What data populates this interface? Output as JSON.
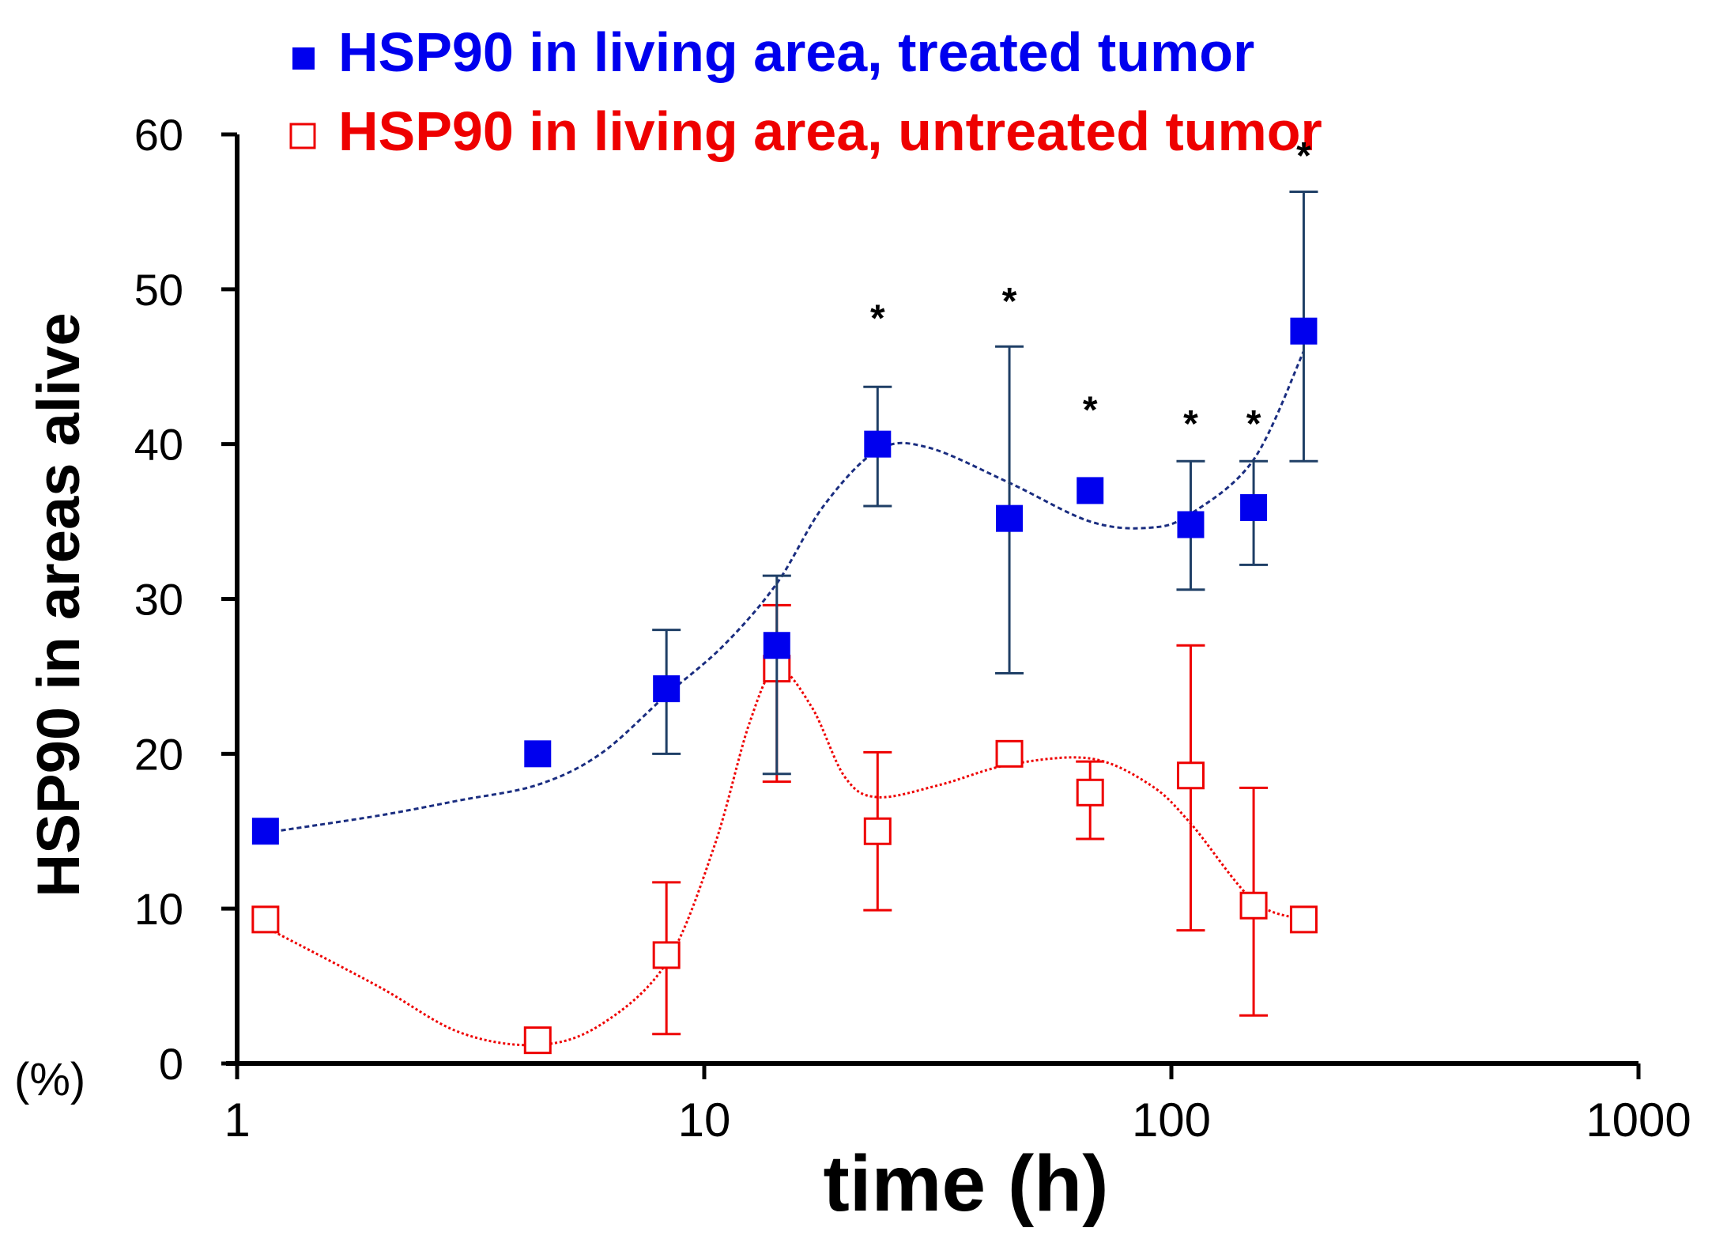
{
  "chart_data": {
    "type": "scatter",
    "xscale": "log",
    "xlim": [
      1,
      1000
    ],
    "ylim": [
      0,
      60
    ],
    "xticks": [
      1,
      10,
      100,
      1000
    ],
    "xtick_labels": [
      "1",
      "10",
      "100",
      "1000"
    ],
    "yticks": [
      0,
      10,
      20,
      30,
      40,
      50,
      60
    ],
    "ytick_labels": [
      "0",
      "10",
      "20",
      "30",
      "40",
      "50",
      "60"
    ],
    "xlabel": "time (h)",
    "ylabel": "HSP90 in areas alive",
    "yunit": "(%)",
    "legend_placement": "top",
    "series": [
      {
        "name": "HSP90 in living area, treated tumor",
        "color": "#0000ee",
        "trend_color": "#1a2d80",
        "errorbar_color": "#1f3f66",
        "marker": "filled-square",
        "points": [
          {
            "x": 1.15,
            "y": 15.0
          },
          {
            "x": 4.4,
            "y": 20.0
          },
          {
            "x": 8.3,
            "y": 24.2,
            "err_low": 20.0,
            "err_high": 28.0
          },
          {
            "x": 14.3,
            "y": 27.0,
            "err_low": 18.7,
            "err_high": 31.5
          },
          {
            "x": 23.5,
            "y": 40.0,
            "err_low": 36.0,
            "err_high": 43.7
          },
          {
            "x": 45.0,
            "y": 35.2,
            "err_low": 25.2,
            "err_high": 46.3
          },
          {
            "x": 67.0,
            "y": 37.0
          },
          {
            "x": 110.0,
            "y": 34.8,
            "err_low": 30.6,
            "err_high": 38.9
          },
          {
            "x": 150.0,
            "y": 35.9,
            "err_low": 32.2,
            "err_high": 38.9
          },
          {
            "x": 192.0,
            "y": 47.3,
            "err_low": 38.9,
            "err_high": 56.3
          }
        ],
        "trend": [
          [
            1.15,
            14.9
          ],
          [
            2,
            16.0
          ],
          [
            3,
            17.0
          ],
          [
            4.4,
            18.0
          ],
          [
            6,
            20.0
          ],
          [
            8.3,
            23.8
          ],
          [
            11,
            27.0
          ],
          [
            14.3,
            31.0
          ],
          [
            18,
            36.0
          ],
          [
            23.5,
            39.6
          ],
          [
            30,
            39.8
          ],
          [
            45,
            37.5
          ],
          [
            67,
            35.0
          ],
          [
            90,
            34.6
          ],
          [
            110,
            35.5
          ],
          [
            150,
            39.0
          ],
          [
            192,
            46.0
          ]
        ]
      },
      {
        "name": "HSP90 in living area, untreated tumor",
        "color": "#ee0000",
        "trend_color": "#ee0000",
        "errorbar_color": "#ee0000",
        "marker": "open-square",
        "points": [
          {
            "x": 1.15,
            "y": 9.3
          },
          {
            "x": 4.4,
            "y": 1.5
          },
          {
            "x": 8.3,
            "y": 7.0,
            "err_low": 1.9,
            "err_high": 11.7
          },
          {
            "x": 14.3,
            "y": 25.5,
            "err_low": 18.2,
            "err_high": 29.6
          },
          {
            "x": 23.5,
            "y": 15.0,
            "err_low": 9.9,
            "err_high": 20.1
          },
          {
            "x": 45.0,
            "y": 20.0
          },
          {
            "x": 67.0,
            "y": 17.5,
            "err_low": 14.5,
            "err_high": 19.5
          },
          {
            "x": 110.0,
            "y": 18.6,
            "err_low": 8.6,
            "err_high": 27.0
          },
          {
            "x": 150.0,
            "y": 10.2,
            "err_low": 3.1,
            "err_high": 17.8
          },
          {
            "x": 192.0,
            "y": 9.3
          }
        ],
        "trend": [
          [
            1.15,
            8.8
          ],
          [
            2,
            5.0
          ],
          [
            3,
            2.0
          ],
          [
            4.4,
            1.2
          ],
          [
            6,
            2.5
          ],
          [
            8.3,
            6.5
          ],
          [
            10.5,
            14.0
          ],
          [
            12.5,
            22.0
          ],
          [
            14.3,
            25.5
          ],
          [
            17,
            23.0
          ],
          [
            20,
            18.5
          ],
          [
            23.5,
            17.2
          ],
          [
            32,
            18.0
          ],
          [
            45,
            19.3
          ],
          [
            67,
            19.7
          ],
          [
            90,
            18.0
          ],
          [
            110,
            15.5
          ],
          [
            150,
            10.5
          ],
          [
            192,
            9.3
          ]
        ]
      }
    ],
    "annotations": [
      {
        "text": "*",
        "x": 23.5,
        "y": 47.3
      },
      {
        "text": "*",
        "x": 45.0,
        "y": 48.4
      },
      {
        "text": "*",
        "x": 67.0,
        "y": 41.4
      },
      {
        "text": "*",
        "x": 110.0,
        "y": 40.5
      },
      {
        "text": "*",
        "x": 150.0,
        "y": 40.5
      },
      {
        "text": "*",
        "x": 192.0,
        "y": 57.8
      }
    ]
  }
}
